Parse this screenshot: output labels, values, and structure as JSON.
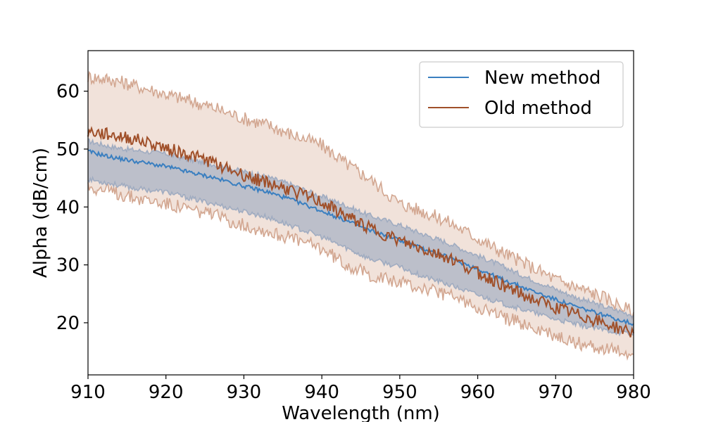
{
  "chart_data": {
    "type": "line",
    "title": "",
    "xlabel": "Wavelength (nm)",
    "ylabel": "Alpha (dB/cm)",
    "xlim": [
      910,
      980
    ],
    "ylim": [
      11,
      67
    ],
    "xticks": [
      910,
      920,
      930,
      940,
      950,
      960,
      970,
      980
    ],
    "yticks": [
      20,
      30,
      40,
      50,
      60
    ],
    "grid": false,
    "legend": {
      "placement": "top-right",
      "entries": [
        "New method",
        "Old method"
      ]
    },
    "series": [
      {
        "name": "New method",
        "color": "#3a7fc0",
        "band_color": "#9aa8c0",
        "x": [
          910,
          913,
          916,
          920,
          923,
          926,
          930,
          933,
          936,
          940,
          943,
          946,
          950,
          953,
          956,
          960,
          963,
          966,
          970,
          973,
          976,
          980
        ],
        "values": [
          49.6,
          48.6,
          47.9,
          47.0,
          46.0,
          45.1,
          43.6,
          42.6,
          41.3,
          39.3,
          37.7,
          36.0,
          34.3,
          32.8,
          31.4,
          29.3,
          27.6,
          26.0,
          24.0,
          22.6,
          21.4,
          19.8
        ],
        "lower": [
          44.8,
          44.0,
          43.2,
          42.6,
          41.5,
          40.6,
          39.2,
          38.2,
          36.8,
          34.8,
          33.0,
          31.1,
          29.6,
          28.0,
          26.7,
          24.8,
          23.4,
          22.2,
          20.6,
          19.6,
          18.8,
          17.9
        ],
        "upper": [
          51.4,
          50.4,
          49.8,
          49.2,
          48.2,
          47.4,
          46.1,
          45.2,
          43.9,
          41.8,
          40.3,
          38.6,
          36.9,
          35.3,
          33.9,
          31.6,
          29.9,
          28.0,
          25.8,
          24.2,
          22.9,
          21.3
        ]
      },
      {
        "name": "Old method",
        "color": "#a0502a",
        "band_color": "#e6cbbb",
        "x": [
          910,
          913,
          916,
          920,
          923,
          926,
          930,
          933,
          936,
          940,
          943,
          946,
          950,
          953,
          956,
          960,
          963,
          966,
          970,
          973,
          976,
          980
        ],
        "values": [
          53.0,
          52.4,
          51.7,
          50.2,
          49.0,
          47.7,
          45.5,
          44.2,
          42.9,
          40.8,
          38.5,
          36.5,
          34.1,
          32.7,
          31.4,
          28.7,
          26.7,
          24.6,
          22.6,
          21.3,
          20.0,
          18.2
        ],
        "lower": [
          43.6,
          42.6,
          41.6,
          40.6,
          39.6,
          38.6,
          36.9,
          35.8,
          34.6,
          32.9,
          30.2,
          28.4,
          26.9,
          25.9,
          24.8,
          22.8,
          21.1,
          19.7,
          17.6,
          16.5,
          15.6,
          14.5
        ],
        "upper": [
          62.5,
          62.0,
          61.0,
          59.5,
          58.4,
          57.2,
          55.3,
          54.2,
          52.6,
          50.7,
          47.6,
          45.0,
          40.6,
          39.2,
          37.6,
          34.6,
          32.3,
          30.3,
          27.5,
          26.0,
          24.5,
          21.8
        ]
      }
    ]
  }
}
